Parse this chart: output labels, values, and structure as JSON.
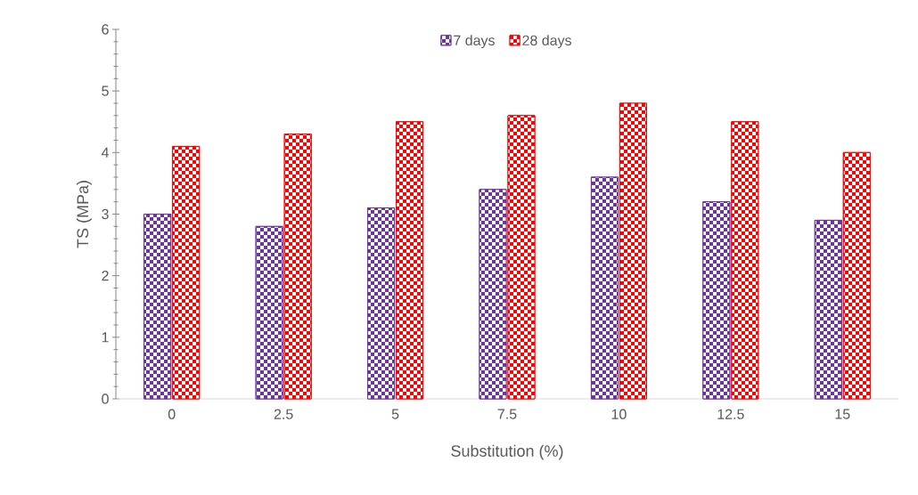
{
  "chart_data": {
    "type": "bar",
    "xlabel": "Substitution (%)",
    "ylabel": "TS (MPa)",
    "categories": [
      "0",
      "2.5",
      "5",
      "7.5",
      "10",
      "12.5",
      "15"
    ],
    "series": [
      {
        "name": "7 days",
        "color": "#7030a0",
        "values": [
          3.0,
          2.8,
          3.1,
          3.4,
          3.6,
          3.2,
          2.9
        ]
      },
      {
        "name": "28 days",
        "color": "#ff0000",
        "values": [
          4.1,
          4.3,
          4.5,
          4.6,
          4.8,
          4.5,
          4.0
        ]
      }
    ],
    "ylim": [
      0,
      6
    ],
    "yticks": [
      0,
      1,
      2,
      3,
      4,
      5,
      6
    ],
    "legend": "top"
  }
}
